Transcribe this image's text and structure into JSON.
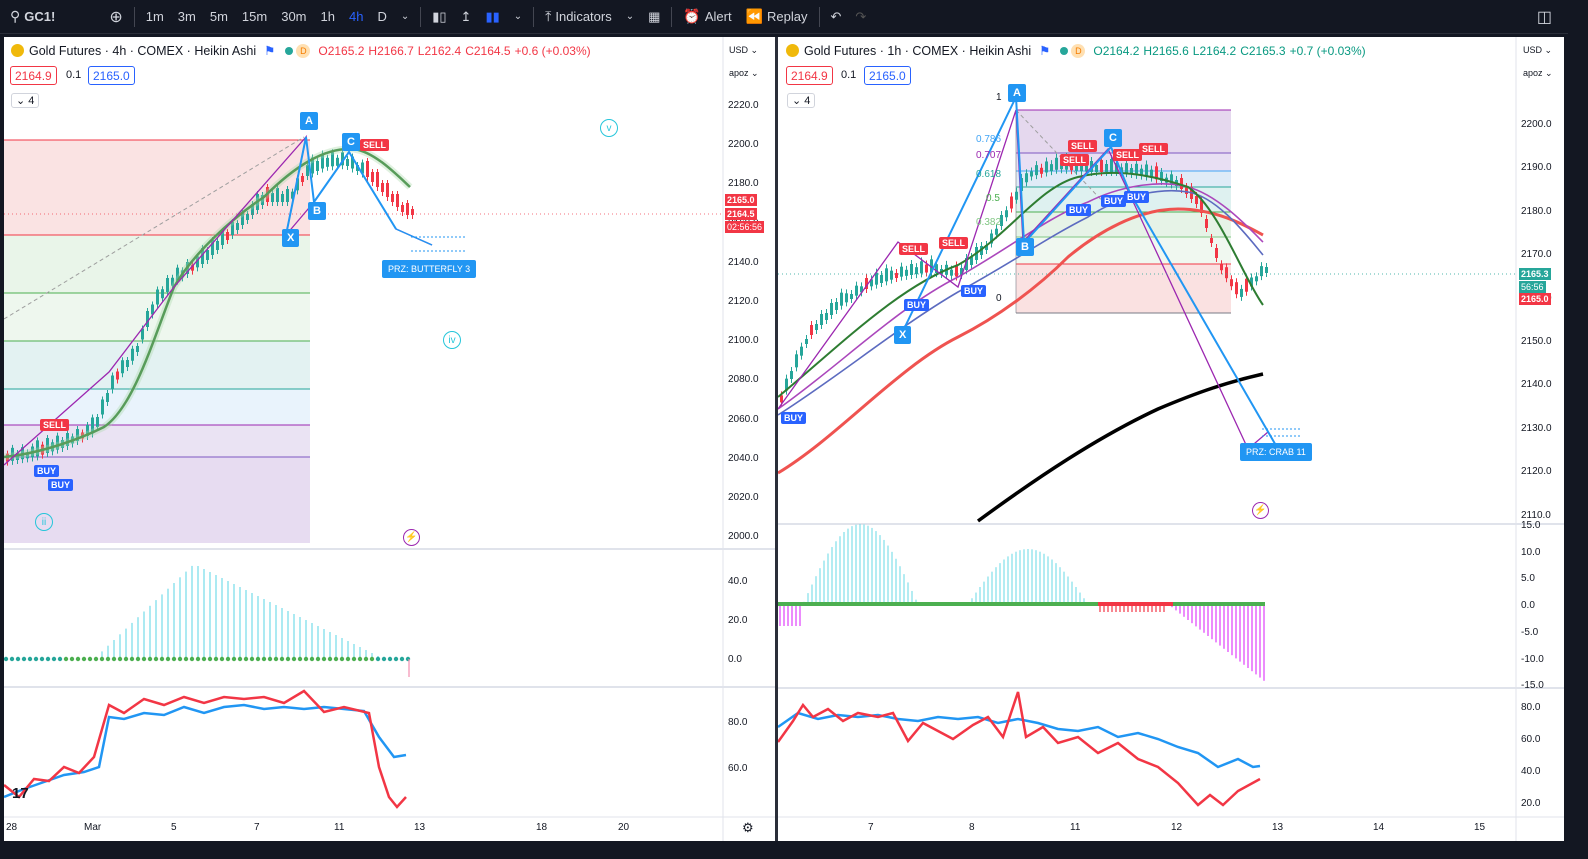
{
  "toolbar": {
    "symbol": "GC1!",
    "intervals": [
      "1m",
      "3m",
      "5m",
      "15m",
      "30m",
      "1h",
      "4h",
      "D"
    ],
    "active_interval": "4h",
    "indicators_label": "Indicators",
    "alert_label": "Alert",
    "replay_label": "Replay"
  },
  "left_chart": {
    "title": "Gold Futures · 4h · COMEX · Heikin Ashi",
    "badge": "D",
    "ohlc": {
      "o": "O2165.2",
      "h": "H2166.7",
      "l": "L2162.4",
      "c": "C2164.5",
      "chg": "+0.6 (+0.03%)"
    },
    "bid": "2164.9",
    "spread": "0.1",
    "ask": "2165.0",
    "collapse": "4",
    "currency": "USD",
    "scale_mode": "apoz",
    "price_ticks": [
      "2220.0",
      "2200.0",
      "2180.0",
      "2160.0",
      "2140.0",
      "2120.0",
      "2100.0",
      "2080.0",
      "2060.0",
      "2040.0",
      "2020.0",
      "2000.0"
    ],
    "osc_ticks": [
      "40.0",
      "20.0",
      "0.0"
    ],
    "rsi_ticks": [
      "80.0",
      "60.0"
    ],
    "x_labels": [
      "28",
      "Mar",
      "5",
      "7",
      "11",
      "13",
      "18",
      "20"
    ],
    "price_badges": [
      "2165.0",
      "2164.5",
      "02:56:56"
    ],
    "pattern_labels": [
      "A",
      "B",
      "C",
      "X"
    ],
    "signals": [
      "SELL",
      "BUY",
      "BUY",
      "SELL"
    ],
    "elliott": [
      "ii",
      "iv",
      "v"
    ],
    "prz_label": "PRZ: BUTTERFLY 3",
    "colors": {
      "bull": "#26a69a",
      "bear": "#f23645",
      "accent": "#2196f3",
      "pattern": "#9c27b0"
    }
  },
  "right_chart": {
    "title": "Gold Futures · 1h · COMEX · Heikin Ashi",
    "badge": "D",
    "ohlc": {
      "o": "O2164.2",
      "h": "H2165.6",
      "l": "L2164.2",
      "c": "C2165.3",
      "chg": "+0.7 (+0.03%)"
    },
    "bid": "2164.9",
    "spread": "0.1",
    "ask": "2165.0",
    "collapse": "4",
    "currency": "USD",
    "scale_mode": "apoz",
    "price_ticks": [
      "2200.0",
      "2190.0",
      "2180.0",
      "2170.0",
      "2160.0",
      "2150.0",
      "2140.0",
      "2130.0",
      "2120.0",
      "2110.0"
    ],
    "osc_ticks": [
      "15.0",
      "10.0",
      "5.0",
      "0.0",
      "-5.0",
      "-10.0",
      "-15.0"
    ],
    "rsi_ticks": [
      "80.0",
      "60.0",
      "40.0",
      "20.0"
    ],
    "x_labels": [
      "7",
      "8",
      "11",
      "12",
      "13",
      "14",
      "15"
    ],
    "fib_levels": [
      "1",
      "0.786",
      "0.707",
      "0.618",
      "0.5",
      "0.382",
      "0"
    ],
    "price_badges": [
      "2165.3",
      "56:56",
      "2165.0"
    ],
    "pattern_labels": [
      "A",
      "B",
      "C",
      "X"
    ],
    "signals": [
      "SELL",
      "SELL",
      "SELL",
      "SELL",
      "SELL",
      "SELL",
      "BUY",
      "BUY",
      "BUY",
      "BUY",
      "BUY",
      "BUY"
    ],
    "prz_label": "PRZ: CRAB 11"
  }
}
